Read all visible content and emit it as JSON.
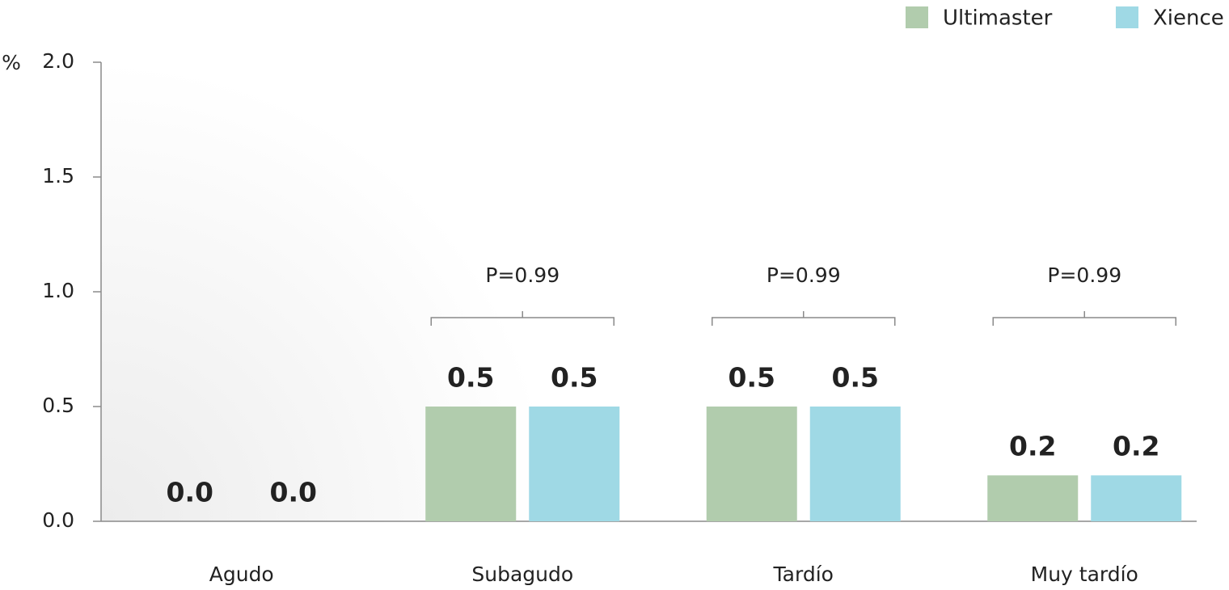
{
  "chart_data": {
    "type": "bar",
    "ylabel": "%",
    "categories": [
      "Agudo",
      "Subagudo",
      "Tardío",
      "Muy tardío"
    ],
    "series": [
      {
        "name": "Ultimaster",
        "color": "#b1ccad",
        "values": [
          0,
          0.5,
          0.5,
          0.2
        ],
        "value_labels": [
          "0.0",
          "0.5",
          "0.5",
          "0.2"
        ]
      },
      {
        "name": "Xience",
        "color": "#9fd9e5",
        "values": [
          0,
          0.5,
          0.5,
          0.2
        ],
        "value_labels": [
          "0.0",
          "0.5",
          "0.5",
          "0.2"
        ]
      }
    ],
    "ylim": [
      0,
      2
    ],
    "yticks": [
      {
        "value": 0,
        "label": "0.0"
      },
      {
        "value": 0.5,
        "label": "0.5"
      },
      {
        "value": 1,
        "label": "1.0"
      },
      {
        "value": 1.5,
        "label": "1.5"
      },
      {
        "value": 2,
        "label": "2.0"
      }
    ],
    "grid": false,
    "legend": "top-right",
    "annotations": [
      {
        "category": "Subagudo",
        "text": "P=0.99"
      },
      {
        "category": "Tardío",
        "text": "P=0.99"
      },
      {
        "category": "Muy tardío",
        "text": "P=0.99"
      }
    ]
  }
}
